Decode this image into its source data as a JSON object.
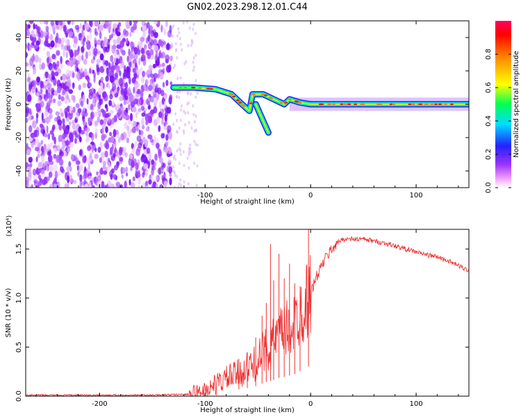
{
  "title": "GN02.2023.298.12.01.C44",
  "chart_data": [
    {
      "type": "heatmap",
      "xlabel": "Height of straight line (km)",
      "ylabel": "Frequency (Hz)",
      "xlim": [
        -270,
        150
      ],
      "ylim": [
        -50,
        50
      ],
      "xticks": [
        -200,
        -100,
        0,
        100
      ],
      "yticks": [
        40,
        20,
        0,
        -20,
        -40
      ],
      "colorbar": {
        "label": "Normalized spectral amplitude",
        "range": [
          0,
          1
        ],
        "ticks": [
          "0.0",
          "0.2",
          "0.4",
          "0.6",
          "0.8"
        ],
        "colors": [
          "#ffffff",
          "#ee99ff",
          "#9933ff",
          "#2222ff",
          "#00ddff",
          "#00ff55",
          "#ffff00",
          "#ff8800",
          "#ff0000"
        ]
      },
      "ridge": [
        {
          "x": -130,
          "y": 10
        },
        {
          "x": -110,
          "y": 10
        },
        {
          "x": -90,
          "y": 9
        },
        {
          "x": -75,
          "y": 6
        },
        {
          "x": -65,
          "y": 0
        },
        {
          "x": -58,
          "y": -4
        },
        {
          "x": -55,
          "y": 6
        },
        {
          "x": -45,
          "y": 6
        },
        {
          "x": -35,
          "y": 3
        },
        {
          "x": -25,
          "y": 0
        },
        {
          "x": -20,
          "y": 3
        },
        {
          "x": -10,
          "y": 1
        },
        {
          "x": 0,
          "y": 0
        },
        {
          "x": 150,
          "y": 0
        }
      ],
      "branch": [
        {
          "x": -52,
          "y": 0
        },
        {
          "x": -45,
          "y": -10
        },
        {
          "x": -40,
          "y": -17
        }
      ]
    },
    {
      "type": "line",
      "xlabel": "Height of straight line (km)",
      "ylabel": "SNR (10 * v/v)",
      "multiplier": "(x10⁴)",
      "xlim": [
        -270,
        150
      ],
      "ylim": [
        0,
        1.7
      ],
      "xticks": [
        -200,
        -100,
        0,
        100
      ],
      "yticks": [
        "0.0",
        "0.5",
        "1.0",
        "1.5"
      ],
      "color": "#ee3333",
      "series": [
        {
          "x": [
            -270,
            -200,
            -150,
            -115,
            -100,
            -90,
            -80,
            -70,
            -60,
            -50,
            -45,
            -40,
            -35,
            -30,
            -25,
            -20,
            -15,
            -10,
            -5,
            0,
            5,
            10,
            15,
            20,
            25,
            30,
            40,
            50,
            60,
            70,
            80,
            90,
            100,
            110,
            120,
            130,
            140,
            150
          ],
          "values": [
            0.01,
            0.01,
            0.01,
            0.02,
            0.06,
            0.12,
            0.18,
            0.22,
            0.28,
            0.35,
            0.45,
            0.5,
            0.55,
            0.62,
            0.65,
            0.7,
            0.75,
            0.85,
            0.95,
            1.05,
            1.2,
            1.32,
            1.42,
            1.5,
            1.56,
            1.6,
            1.6,
            1.6,
            1.58,
            1.56,
            1.53,
            1.5,
            1.47,
            1.44,
            1.42,
            1.38,
            1.33,
            1.28
          ],
          "spikes": [
            {
              "x": -68,
              "y": 0.38
            },
            {
              "x": -60,
              "y": 0.45
            },
            {
              "x": -52,
              "y": 0.6
            },
            {
              "x": -46,
              "y": 0.82
            },
            {
              "x": -42,
              "y": 0.95
            },
            {
              "x": -38,
              "y": 1.55
            },
            {
              "x": -35,
              "y": 1.18
            },
            {
              "x": -30,
              "y": 1.45
            },
            {
              "x": -25,
              "y": 1.2
            },
            {
              "x": -20,
              "y": 1.35
            },
            {
              "x": -15,
              "y": 1.15
            },
            {
              "x": -10,
              "y": 1.12
            },
            {
              "x": -2,
              "y": 1.73
            }
          ]
        }
      ]
    }
  ]
}
